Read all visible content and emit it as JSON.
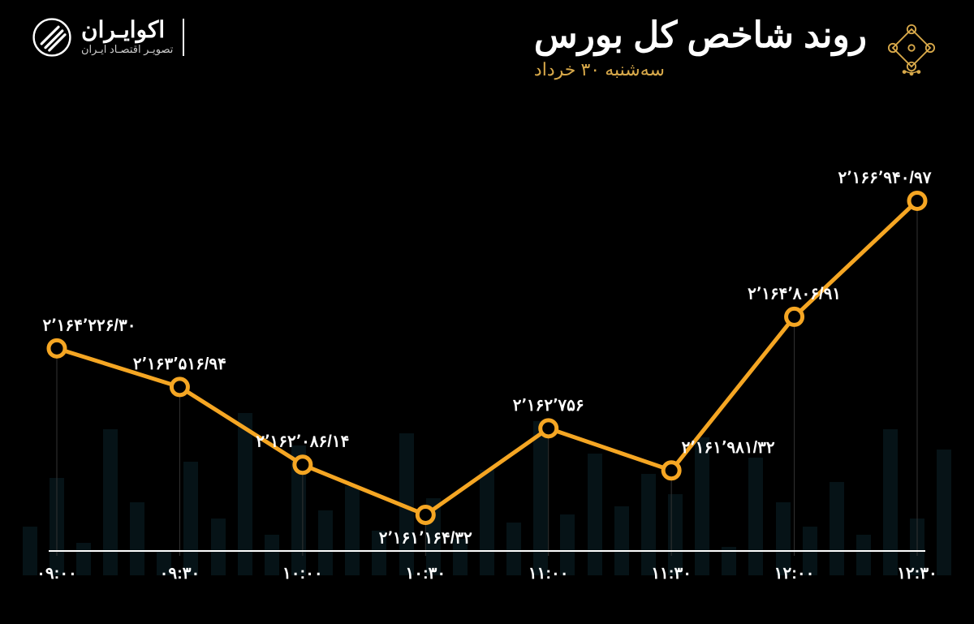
{
  "header": {
    "title": "روند شاخص کل بورس",
    "subtitle": "سه‌شنبه ۳۰ خرداد"
  },
  "brand": {
    "name": "اکوایـران",
    "tagline": "تصویـر اقتصـاد ایـران"
  },
  "chart": {
    "type": "line",
    "line_color": "#f5a623",
    "point_stroke": "#f5a623",
    "point_fill": "#000000",
    "point_radius": 10,
    "line_width": 5,
    "label_color": "#ffffff",
    "label_fontsize": 20,
    "axis_color": "#ffffff",
    "grid_color": "#333333",
    "background_color": "#000000",
    "bg_bar_color": "#1a4d5c",
    "ymin": 2160500,
    "ymax": 2167500,
    "points": [
      {
        "x_label": "۰۹:۰۰",
        "value": 2164226.3,
        "label": "۲٬۱۶۴٬۲۲۶/۳۰",
        "label_pos": "above"
      },
      {
        "x_label": "۰۹:۳۰",
        "value": 2163516.94,
        "label": "۲٬۱۶۳٬۵۱۶/۹۴",
        "label_pos": "above"
      },
      {
        "x_label": "۱۰:۰۰",
        "value": 2162086.14,
        "label": "۲٬۱۶۲٬۰۸۶/۱۴",
        "label_pos": "above"
      },
      {
        "x_label": "۱۰:۳۰",
        "value": 2161164.32,
        "label": "۲٬۱۶۱٬۱۶۴/۳۲",
        "label_pos": "below"
      },
      {
        "x_label": "۱۱:۰۰",
        "value": 2162756,
        "label": "۲٬۱۶۲٬۷۵۶",
        "label_pos": "above"
      },
      {
        "x_label": "۱۱:۳۰",
        "value": 2161981.32,
        "label": "۲٬۱۶۱٬۹۸۱/۳۲",
        "label_pos": "above-right"
      },
      {
        "x_label": "۱۲:۰۰",
        "value": 2164806.91,
        "label": "۲٬۱۶۴٬۸۰۶/۹۱",
        "label_pos": "above"
      },
      {
        "x_label": "۱۲:۳۰",
        "value": 2166940.97,
        "label": "۲٬۱۶۶٬۹۴۰/۹۷",
        "label_pos": "above"
      }
    ],
    "bg_bars_heights": [
      60,
      120,
      40,
      180,
      90,
      30,
      140,
      70,
      200,
      50,
      160,
      80,
      110,
      55,
      175,
      95,
      45,
      130,
      65,
      190,
      75,
      150,
      85,
      125,
      100,
      170,
      35,
      145,
      90,
      60,
      115,
      50,
      180,
      70,
      155
    ]
  }
}
